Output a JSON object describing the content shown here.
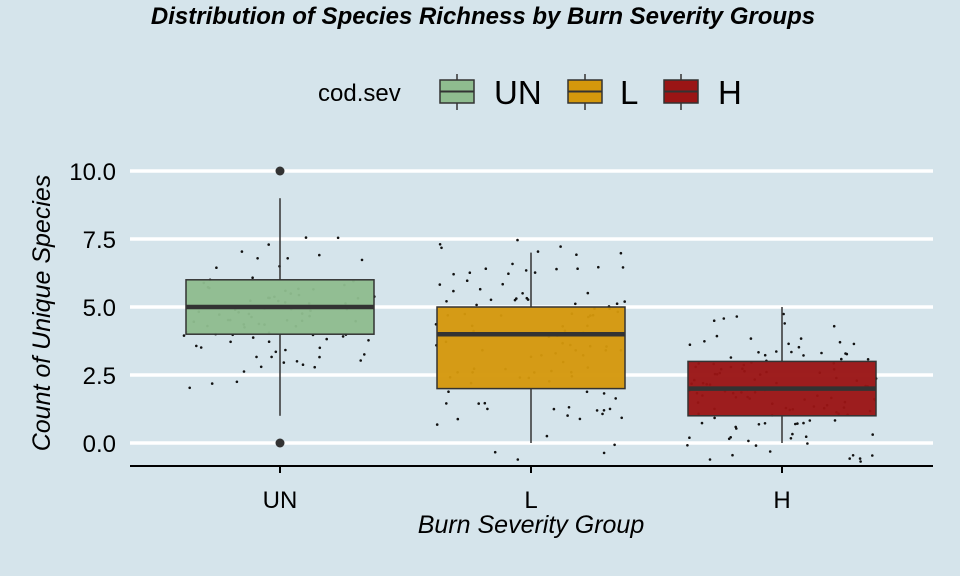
{
  "chart_data": {
    "type": "box",
    "title": "Distribution of Species Richness by Burn Severity Groups",
    "xlabel": "Burn Severity Group",
    "ylabel": "Count of Unique Species",
    "ylim": [
      -0.9,
      10.8
    ],
    "yticks": [
      0,
      2.5,
      5,
      7.5,
      10
    ],
    "ytick_labels": [
      "0.0",
      "2.5",
      "5.0",
      "7.5",
      "10.0"
    ],
    "legend": {
      "title": "cod.sev",
      "position": "top"
    },
    "categories": [
      "UN",
      "L",
      "H"
    ],
    "colors": {
      "UN": "#8fbc8f",
      "L": "#d4980c",
      "H": "#9a1515"
    },
    "boxes": [
      {
        "group": "UN",
        "min": 1,
        "q1": 4,
        "median": 5,
        "q3": 6,
        "max": 9,
        "outliers": [
          10,
          0
        ]
      },
      {
        "group": "L",
        "min": 0,
        "q1": 2,
        "median": 4,
        "q3": 5,
        "max": 7,
        "outliers": []
      },
      {
        "group": "H",
        "min": 0,
        "q1": 1,
        "median": 2,
        "q3": 3,
        "max": 5,
        "outliers": []
      }
    ],
    "grid": true,
    "jitter_points": true
  }
}
